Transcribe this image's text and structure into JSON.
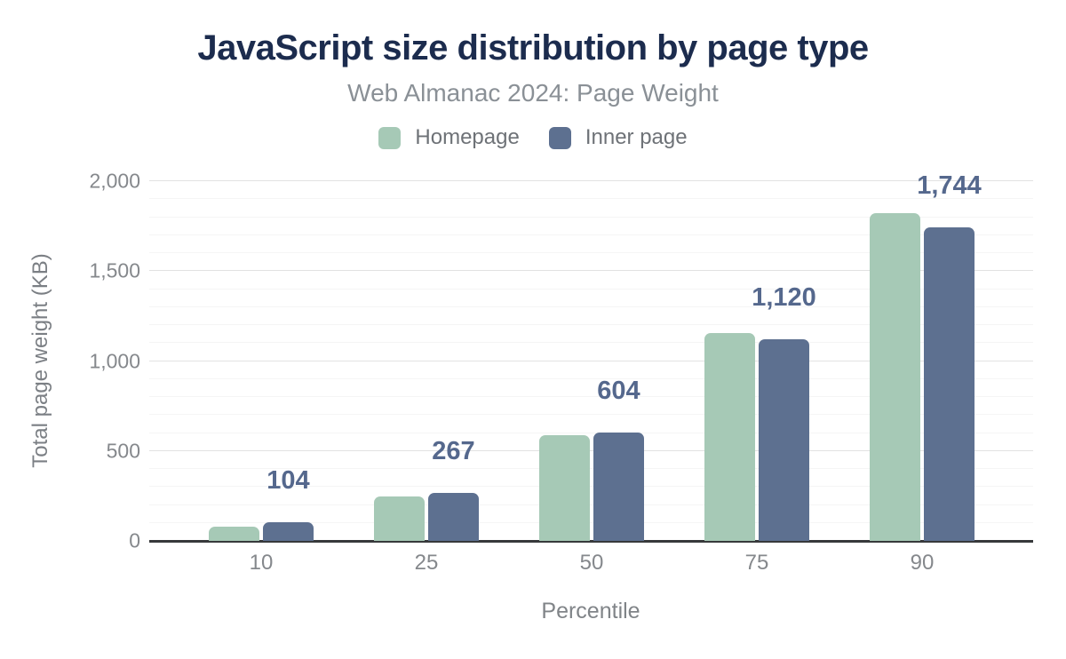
{
  "title": "JavaScript size distribution by page type",
  "subtitle": "Web Almanac 2024: Page Weight",
  "legend": [
    {
      "label": "Homepage",
      "color": "#a6c9b6"
    },
    {
      "label": "Inner page",
      "color": "#5d7090"
    }
  ],
  "colors": {
    "title_text": "#1c2c4e",
    "subtitle_text": "#8a9096",
    "homepage_bar": "#a6c9b6",
    "inner_page_bar": "#5d7090",
    "data_label_text": "#55688d",
    "axis_text": "#85888c",
    "major_gridline": "#e2e2e2",
    "minor_gridline": "#f5f5f5",
    "baseline": "#37393b"
  },
  "chart_data": {
    "type": "bar",
    "title": "JavaScript size distribution by page type",
    "subtitle": "Web Almanac 2024: Page Weight",
    "categories": [
      "10",
      "25",
      "50",
      "75",
      "90"
    ],
    "series": [
      {
        "name": "Homepage",
        "color": "#a6c9b6",
        "values": [
          80,
          246,
          588,
          1155,
          1820
        ]
      },
      {
        "name": "Inner page",
        "color": "#5d7090",
        "values": [
          104,
          267,
          604,
          1120,
          1744
        ]
      }
    ],
    "data_labels": {
      "applies_to_series": "Inner page",
      "values": [
        "104",
        "267",
        "604",
        "1,120",
        "1,744"
      ]
    },
    "xlabel": "Percentile",
    "ylabel": "Total page weight (KB)",
    "ylim": [
      0,
      2000
    ],
    "yticks": [
      {
        "value": 0,
        "label": "0"
      },
      {
        "value": 500,
        "label": "500"
      },
      {
        "value": 1000,
        "label": "1,000"
      },
      {
        "value": 1500,
        "label": "1,500"
      },
      {
        "value": 2000,
        "label": "2,000"
      }
    ],
    "grid": {
      "minor_every": 100,
      "major_every": 500,
      "visible": true
    },
    "legend_position": "top"
  }
}
